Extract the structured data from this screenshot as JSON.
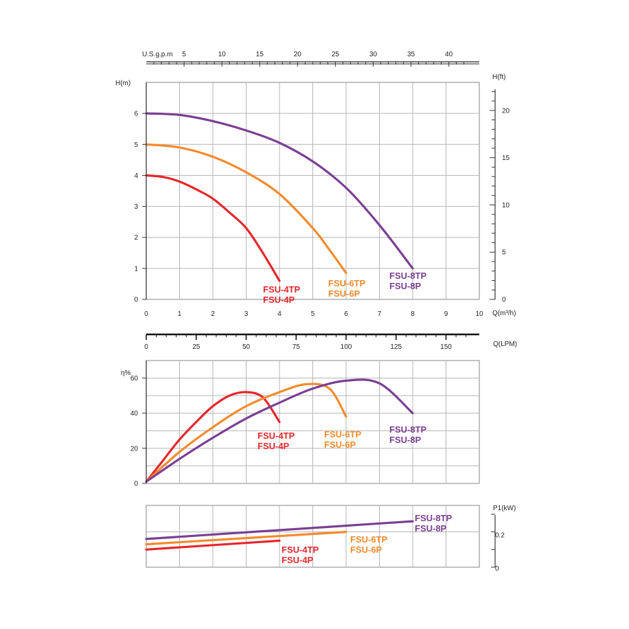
{
  "chart_data": [
    {
      "type": "line",
      "panel": "head",
      "ylabel": "H(m)",
      "y2label": "H(ft)",
      "xlabel": "Q(m³/h)",
      "top_axis_label": "U.S.g.p.m",
      "bottom_axis2_label": "Q(LPM)",
      "xlim": [
        0,
        10
      ],
      "ylim": [
        0,
        7
      ],
      "y2lim": [
        0,
        23
      ],
      "x_ticks": [
        "0",
        "1",
        "2",
        "3",
        "4",
        "5",
        "6",
        "7",
        "8",
        "9",
        "10"
      ],
      "y_ticks": [
        "0",
        "1",
        "2",
        "3",
        "4",
        "5",
        "6"
      ],
      "y2_ticks": [
        "0",
        "5",
        "10",
        "15",
        "20"
      ],
      "top_ticks": [
        "5",
        "10",
        "15",
        "20",
        "25",
        "30",
        "35",
        "40"
      ],
      "lpm_ticks": [
        "0",
        "25",
        "50",
        "75",
        "100",
        "125",
        "150"
      ],
      "grid": true,
      "series": [
        {
          "name": "FSU-4TP / FSU-4P",
          "label_lines": [
            "FSU-4TP",
            "FSU-4P"
          ],
          "color": "#e5262b",
          "points": [
            [
              0,
              4.0
            ],
            [
              0.5,
              3.95
            ],
            [
              1,
              3.8
            ],
            [
              1.5,
              3.55
            ],
            [
              2,
              3.25
            ],
            [
              2.5,
              2.8
            ],
            [
              3,
              2.3
            ],
            [
              3.5,
              1.5
            ],
            [
              4,
              0.6
            ]
          ]
        },
        {
          "name": "FSU-6TP / FSU-6P",
          "label_lines": [
            "FSU-6TP",
            "FSU-6P"
          ],
          "color": "#f58a2d",
          "points": [
            [
              0,
              5.0
            ],
            [
              1,
              4.9
            ],
            [
              2,
              4.6
            ],
            [
              3,
              4.1
            ],
            [
              4,
              3.4
            ],
            [
              5,
              2.3
            ],
            [
              5.5,
              1.6
            ],
            [
              6,
              0.85
            ]
          ]
        },
        {
          "name": "FSU-8TP / FSU-8P",
          "label_lines": [
            "FSU-8TP",
            "FSU-8P"
          ],
          "color": "#7a3f92",
          "points": [
            [
              0,
              6.0
            ],
            [
              1,
              5.95
            ],
            [
              2,
              5.75
            ],
            [
              3,
              5.45
            ],
            [
              4,
              5.05
            ],
            [
              5,
              4.45
            ],
            [
              6,
              3.6
            ],
            [
              7,
              2.4
            ],
            [
              8,
              1.0
            ]
          ]
        }
      ]
    },
    {
      "type": "line",
      "panel": "efficiency",
      "ylabel": "η%",
      "ylim": [
        0,
        70
      ],
      "y_ticks": [
        "0",
        "20",
        "40",
        "60"
      ],
      "grid": true,
      "series": [
        {
          "name": "FSU-4TP / FSU-4P",
          "label_lines": [
            "FSU-4TP",
            "FSU-4P"
          ],
          "color": "#e5262b",
          "points": [
            [
              0,
              1
            ],
            [
              0.5,
              13
            ],
            [
              1,
              25
            ],
            [
              1.5,
              35
            ],
            [
              2,
              44
            ],
            [
              2.5,
              50
            ],
            [
              3,
              52
            ],
            [
              3.5,
              49
            ],
            [
              4,
              35
            ]
          ]
        },
        {
          "name": "FSU-6TP / FSU-6P",
          "label_lines": [
            "FSU-6TP",
            "FSU-6P"
          ],
          "color": "#f58a2d",
          "points": [
            [
              0,
              1
            ],
            [
              1,
              18
            ],
            [
              2,
              32
            ],
            [
              3,
              44
            ],
            [
              4,
              52
            ],
            [
              4.8,
              56.5
            ],
            [
              5.5,
              54
            ],
            [
              6,
              38
            ]
          ]
        },
        {
          "name": "FSU-8TP / FSU-8P",
          "label_lines": [
            "FSU-8TP",
            "FSU-8P"
          ],
          "color": "#7a3f92",
          "points": [
            [
              0,
              1
            ],
            [
              1,
              14
            ],
            [
              2,
              26
            ],
            [
              3,
              37
            ],
            [
              4,
              46
            ],
            [
              5,
              54
            ],
            [
              6,
              58.5
            ],
            [
              7,
              57
            ],
            [
              8,
              40
            ]
          ]
        }
      ]
    },
    {
      "type": "line",
      "panel": "power",
      "ylabel": "P1(kW)",
      "ylim": [
        0,
        0.35
      ],
      "y_ticks": [
        "0",
        "0.2"
      ],
      "grid": true,
      "series": [
        {
          "name": "FSU-4TP / FSU-4P",
          "label_lines": [
            "FSU-4TP",
            "FSU-4P"
          ],
          "color": "#e5262b",
          "points": [
            [
              0,
              0.1
            ],
            [
              4,
              0.15
            ]
          ]
        },
        {
          "name": "FSU-6TP / FSU-6P",
          "label_lines": [
            "FSU-6TP",
            "FSU-6P"
          ],
          "color": "#f58a2d",
          "points": [
            [
              0,
              0.13
            ],
            [
              6,
              0.2
            ]
          ]
        },
        {
          "name": "FSU-8TP / FSU-8P",
          "label_lines": [
            "FSU-8TP",
            "FSU-8P"
          ],
          "color": "#7a3f92",
          "points": [
            [
              0,
              0.16
            ],
            [
              8,
              0.26
            ]
          ]
        }
      ]
    }
  ]
}
